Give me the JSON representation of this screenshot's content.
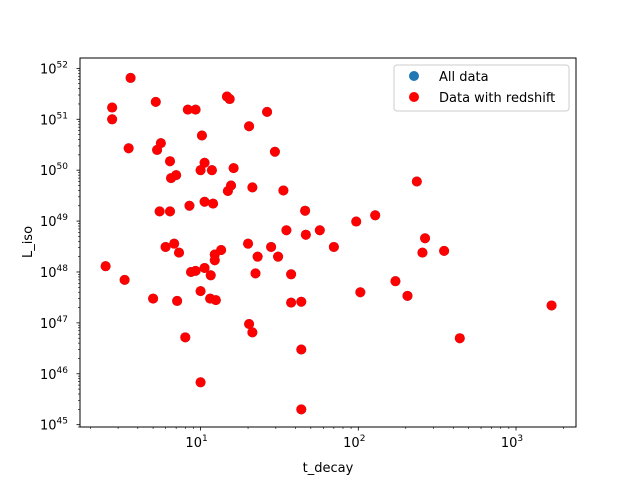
{
  "chart_data": {
    "type": "scatter",
    "title": "",
    "xlabel": "t_decay",
    "ylabel": "L_iso",
    "xscale": "log",
    "yscale": "log",
    "xlim": [
      1.72,
      2400
    ],
    "ylim": [
      9e+44,
      1.6e+52
    ],
    "grid": false,
    "legend_position": "top-right",
    "x_ticks": [
      {
        "value": 10,
        "base": "10",
        "exp": "1"
      },
      {
        "value": 100,
        "base": "10",
        "exp": "2"
      },
      {
        "value": 1000,
        "base": "10",
        "exp": "3"
      }
    ],
    "y_ticks": [
      {
        "value": 1e+45,
        "base": "10",
        "exp": "45"
      },
      {
        "value": 1e+46,
        "base": "10",
        "exp": "46"
      },
      {
        "value": 1e+47,
        "base": "10",
        "exp": "47"
      },
      {
        "value": 1e+48,
        "base": "10",
        "exp": "48"
      },
      {
        "value": 1e+49,
        "base": "10",
        "exp": "49"
      },
      {
        "value": 1e+50,
        "base": "10",
        "exp": "50"
      },
      {
        "value": 1e+51,
        "base": "10",
        "exp": "51"
      },
      {
        "value": 1e+52,
        "base": "10",
        "exp": "52"
      }
    ],
    "series": [
      {
        "name": "All data",
        "color": "#1f77b4",
        "points": [
          [
            3.6,
            6.5e+51
          ],
          [
            2.75,
            1.7e+51
          ],
          [
            2.75,
            1e+51
          ],
          [
            3.5,
            2.7e+50
          ],
          [
            2.5,
            1.3e+48
          ],
          [
            3.3,
            7e+47
          ],
          [
            5.2,
            2.2e+51
          ],
          [
            5.6,
            3.4e+50
          ],
          [
            5.3,
            2.5e+50
          ],
          [
            6.4,
            1.5e+50
          ],
          [
            6.5,
            7e+49
          ],
          [
            7,
            8e+49
          ],
          [
            5.5,
            1.55e+49
          ],
          [
            6.4,
            1.55e+49
          ],
          [
            6,
            3.1e+48
          ],
          [
            6.8,
            3.6e+48
          ],
          [
            7.3,
            2.4e+48
          ],
          [
            5,
            3e+47
          ],
          [
            7.1,
            2.7e+47
          ],
          [
            8,
            5.2e+46
          ],
          [
            8.3,
            1.55e+51
          ],
          [
            9.3,
            1.55e+51
          ],
          [
            10.2,
            4.8e+50
          ],
          [
            10.6,
            1.4e+50
          ],
          [
            10,
            1e+50
          ],
          [
            11.8,
            1e+50
          ],
          [
            8.5,
            2e+49
          ],
          [
            10.6,
            2.4e+49
          ],
          [
            12,
            2.2e+49
          ],
          [
            8.7,
            1e+48
          ],
          [
            9.3,
            1.05e+48
          ],
          [
            10.6,
            1.2e+48
          ],
          [
            12.3,
            1.7e+48
          ],
          [
            12.3,
            2.2e+48
          ],
          [
            13.5,
            2.7e+48
          ],
          [
            10,
            4.2e+47
          ],
          [
            11.6,
            8.6e+47
          ],
          [
            11.5,
            3e+47
          ],
          [
            12.5,
            2.8e+47
          ],
          [
            10,
            6.8e+45
          ],
          [
            14.7,
            2.8e+51
          ],
          [
            15.3,
            2.5e+51
          ],
          [
            16.2,
            1.1e+50
          ],
          [
            15.6,
            5e+49
          ],
          [
            14.9,
            3.9e+49
          ],
          [
            20.3,
            7.3e+50
          ],
          [
            21.3,
            4.6e+49
          ],
          [
            20,
            3.6e+48
          ],
          [
            23,
            2e+48
          ],
          [
            22.3,
            9.4e+47
          ],
          [
            20.3,
            9.5e+46
          ],
          [
            21.3,
            6.5e+46
          ],
          [
            26.4,
            1.4e+51
          ],
          [
            29.6,
            2.3e+50
          ],
          [
            33.5,
            4e+49
          ],
          [
            35,
            6.6e+48
          ],
          [
            28,
            3.1e+48
          ],
          [
            31,
            2e+48
          ],
          [
            37.5,
            9e+47
          ],
          [
            37.5,
            2.5e+47
          ],
          [
            43.5,
            2.6e+47
          ],
          [
            43.5,
            3e+46
          ],
          [
            43.5,
            2e+45
          ],
          [
            46,
            1.6e+49
          ],
          [
            57,
            6.6e+48
          ],
          [
            46.5,
            5.4e+48
          ],
          [
            70,
            3.1e+48
          ],
          [
            97,
            9.8e+48
          ],
          [
            128,
            1.3e+49
          ],
          [
            103,
            4e+47
          ],
          [
            172,
            6.6e+47
          ],
          [
            205,
            3.4e+47
          ],
          [
            235,
            6e+49
          ],
          [
            255,
            2.4e+48
          ],
          [
            265,
            4.6e+48
          ],
          [
            350,
            2.6e+48
          ],
          [
            440,
            5e+46
          ],
          [
            1680,
            2.2e+47
          ]
        ]
      },
      {
        "name": "Data with redshift",
        "color": "#ff0000",
        "points": [
          [
            3.6,
            6.5e+51
          ],
          [
            2.75,
            1.7e+51
          ],
          [
            2.75,
            1e+51
          ],
          [
            3.5,
            2.7e+50
          ],
          [
            2.5,
            1.3e+48
          ],
          [
            3.3,
            7e+47
          ],
          [
            5.2,
            2.2e+51
          ],
          [
            5.6,
            3.4e+50
          ],
          [
            5.3,
            2.5e+50
          ],
          [
            6.4,
            1.5e+50
          ],
          [
            6.5,
            7e+49
          ],
          [
            7,
            8e+49
          ],
          [
            5.5,
            1.55e+49
          ],
          [
            6.4,
            1.55e+49
          ],
          [
            6,
            3.1e+48
          ],
          [
            6.8,
            3.6e+48
          ],
          [
            7.3,
            2.4e+48
          ],
          [
            5,
            3e+47
          ],
          [
            7.1,
            2.7e+47
          ],
          [
            8,
            5.2e+46
          ],
          [
            8.3,
            1.55e+51
          ],
          [
            9.3,
            1.55e+51
          ],
          [
            10.2,
            4.8e+50
          ],
          [
            10.6,
            1.4e+50
          ],
          [
            10,
            1e+50
          ],
          [
            11.8,
            1e+50
          ],
          [
            8.5,
            2e+49
          ],
          [
            10.6,
            2.4e+49
          ],
          [
            12,
            2.2e+49
          ],
          [
            8.7,
            1e+48
          ],
          [
            9.3,
            1.05e+48
          ],
          [
            10.6,
            1.2e+48
          ],
          [
            12.3,
            1.7e+48
          ],
          [
            12.3,
            2.2e+48
          ],
          [
            13.5,
            2.7e+48
          ],
          [
            10,
            4.2e+47
          ],
          [
            11.6,
            8.6e+47
          ],
          [
            11.5,
            3e+47
          ],
          [
            12.5,
            2.8e+47
          ],
          [
            10,
            6.8e+45
          ],
          [
            14.7,
            2.8e+51
          ],
          [
            15.3,
            2.5e+51
          ],
          [
            16.2,
            1.1e+50
          ],
          [
            15.6,
            5e+49
          ],
          [
            14.9,
            3.9e+49
          ],
          [
            20.3,
            7.3e+50
          ],
          [
            21.3,
            4.6e+49
          ],
          [
            20,
            3.6e+48
          ],
          [
            23,
            2e+48
          ],
          [
            22.3,
            9.4e+47
          ],
          [
            20.3,
            9.5e+46
          ],
          [
            21.3,
            6.5e+46
          ],
          [
            26.4,
            1.4e+51
          ],
          [
            29.6,
            2.3e+50
          ],
          [
            33.5,
            4e+49
          ],
          [
            35,
            6.6e+48
          ],
          [
            28,
            3.1e+48
          ],
          [
            31,
            2e+48
          ],
          [
            37.5,
            9e+47
          ],
          [
            37.5,
            2.5e+47
          ],
          [
            43.5,
            2.6e+47
          ],
          [
            43.5,
            3e+46
          ],
          [
            43.5,
            2e+45
          ],
          [
            46,
            1.6e+49
          ],
          [
            57,
            6.6e+48
          ],
          [
            46.5,
            5.4e+48
          ],
          [
            70,
            3.1e+48
          ],
          [
            97,
            9.8e+48
          ],
          [
            128,
            1.3e+49
          ],
          [
            103,
            4e+47
          ],
          [
            172,
            6.6e+47
          ],
          [
            205,
            3.4e+47
          ],
          [
            235,
            6e+49
          ],
          [
            255,
            2.4e+48
          ],
          [
            265,
            4.6e+48
          ],
          [
            350,
            2.6e+48
          ],
          [
            440,
            5e+46
          ],
          [
            1680,
            2.2e+47
          ]
        ]
      }
    ]
  }
}
